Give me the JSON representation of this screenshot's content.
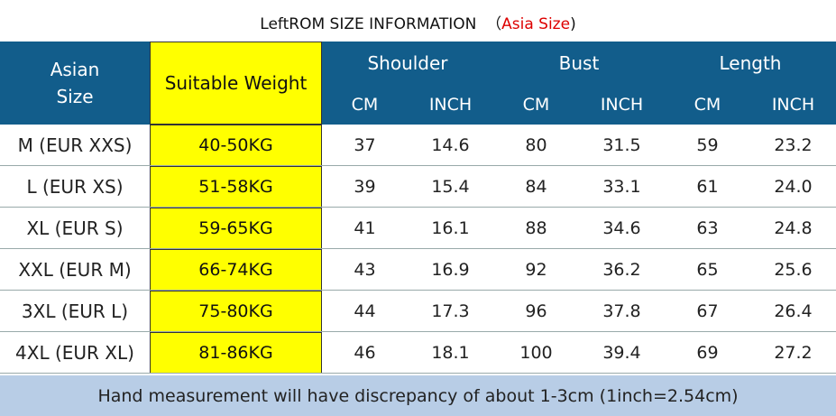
{
  "title": {
    "text": "LeftROM SIZE INFORMATION  （",
    "highlight": "Asia Size",
    "suffix": ")"
  },
  "header": {
    "size": "Asian Size",
    "weight": "Suitable Weight",
    "groups": [
      "Shoulder",
      "Bust",
      "Length"
    ],
    "units": [
      "CM",
      "INCH",
      "CM",
      "INCH",
      "CM",
      "INCH"
    ]
  },
  "table": {
    "rows": [
      [
        "M (EUR XXS)",
        "40-50KG",
        "37",
        "14.6",
        "80",
        "31.5",
        "59",
        "23.2"
      ],
      [
        "L (EUR XS)",
        "51-58KG",
        "39",
        "15.4",
        "84",
        "33.1",
        "61",
        "24.0"
      ],
      [
        "XL (EUR S)",
        "59-65KG",
        "41",
        "16.1",
        "88",
        "34.6",
        "63",
        "24.8"
      ],
      [
        "XXL (EUR M)",
        "66-74KG",
        "43",
        "16.9",
        "92",
        "36.2",
        "65",
        "25.6"
      ],
      [
        "3XL (EUR L)",
        "75-80KG",
        "44",
        "17.3",
        "96",
        "37.8",
        "67",
        "26.4"
      ],
      [
        "4XL (EUR XL)",
        "81-86KG",
        "46",
        "18.1",
        "100",
        "39.4",
        "69",
        "27.2"
      ]
    ]
  },
  "footer": {
    "note": "Hand measurement will have discrepancy of about 1-3cm (1inch=2.54cm)"
  }
}
